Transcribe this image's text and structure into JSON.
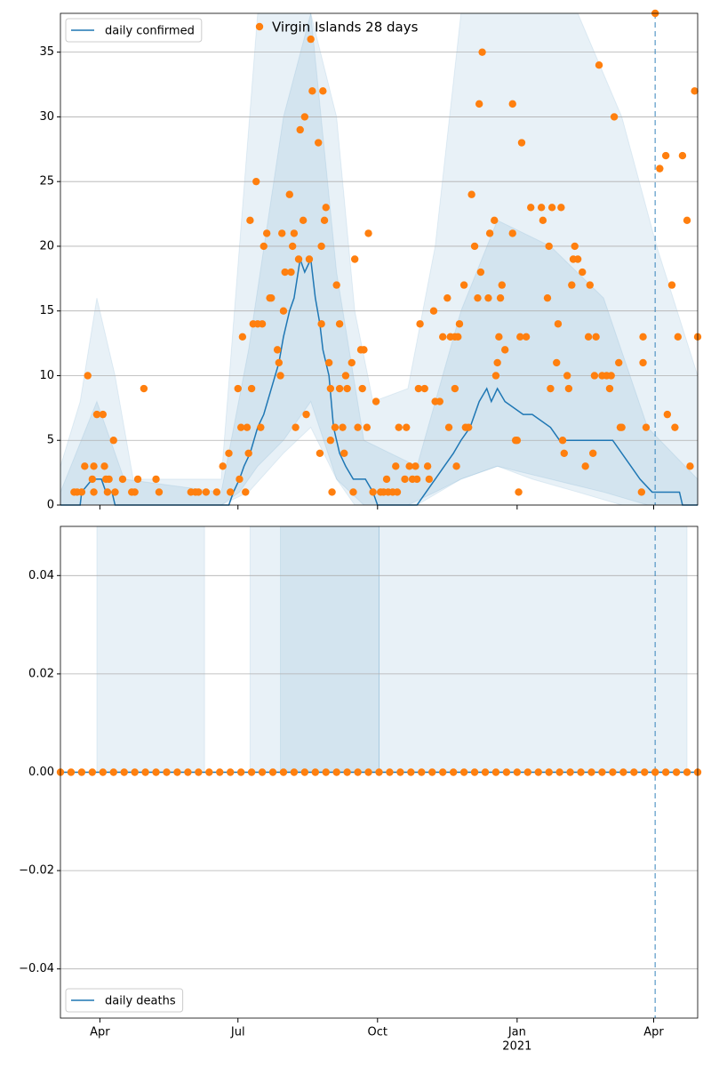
{
  "chart_data": [
    {
      "type": "line",
      "xlim": [
        -26,
        394
      ],
      "ylim": [
        0,
        38
      ],
      "yticks": [
        0,
        5,
        10,
        15,
        20,
        25,
        30,
        35
      ],
      "grid": true,
      "vline": 366,
      "bands": [
        {
          "color": "#1f77b4",
          "x": [
            -26,
            -13,
            -2,
            10,
            22,
            80,
            92,
            104,
            121,
            139,
            156,
            168,
            180,
            203,
            221,
            238,
            262,
            285,
            315,
            344,
            367,
            394
          ],
          "lower": [
            0,
            0,
            0,
            0,
            0,
            0,
            1,
            3,
            5,
            8,
            2,
            0,
            0,
            0,
            1,
            2,
            3,
            2,
            1,
            0,
            0,
            0
          ],
          "upper": [
            3,
            8,
            16,
            10,
            2,
            2,
            20,
            38,
            38,
            38,
            30,
            15,
            8,
            9,
            20,
            38,
            38,
            38,
            38,
            30,
            20,
            10
          ]
        },
        {
          "color": "#1f77b4",
          "x": [
            -26,
            -2,
            16,
            80,
            98,
            121,
            139,
            156,
            174,
            209,
            238,
            262,
            297,
            332,
            361,
            394
          ],
          "lower": [
            0,
            0,
            0,
            0,
            1,
            4,
            6,
            2,
            0,
            0,
            2,
            3,
            2,
            1,
            0,
            0
          ],
          "upper": [
            1,
            8,
            2,
            1,
            12,
            30,
            38,
            18,
            5,
            3,
            15,
            22,
            20,
            16,
            6,
            2
          ]
        }
      ],
      "series": [
        {
          "name": "daily confirmed",
          "color": "#1f77b4",
          "legend": "upper left",
          "x": [
            -26,
            -13,
            -12,
            -5,
            1,
            4,
            8,
            10,
            23,
            85,
            88,
            92,
            95,
            99,
            104,
            108,
            113,
            118,
            121,
            125,
            128,
            132,
            135,
            139,
            142,
            145,
            147,
            151,
            154,
            158,
            162,
            167,
            175,
            180,
            183,
            209,
            215,
            221,
            227,
            233,
            238,
            244,
            250,
            255,
            258,
            262,
            267,
            279,
            285,
            297,
            303,
            315,
            338,
            344,
            350,
            356,
            364,
            382,
            384,
            394
          ],
          "values": [
            0,
            0,
            1,
            2,
            2,
            1,
            1,
            0,
            0,
            0,
            1,
            2,
            3,
            4,
            6,
            7,
            9,
            11,
            13,
            15,
            16,
            19,
            18,
            19,
            16,
            14,
            12,
            10,
            6,
            4,
            3,
            2,
            2,
            1,
            0,
            0,
            1,
            2,
            3,
            4,
            5,
            6,
            8,
            9,
            8,
            9,
            8,
            7,
            7,
            6,
            5,
            5,
            5,
            4,
            3,
            2,
            1,
            1,
            0,
            0
          ]
        },
        {
          "name": "Virgin Islands 28 days",
          "type": "scatter",
          "color": "#ff7f0e",
          "legend": "upper center",
          "x": [
            -17,
            -15,
            -12,
            -10,
            -8,
            -5,
            -4,
            -4,
            -2,
            2,
            3,
            4,
            5,
            6,
            9,
            10,
            15,
            21,
            23,
            25,
            29,
            37,
            39,
            60,
            63,
            65,
            70,
            77,
            81,
            85,
            86,
            91,
            92,
            93,
            94,
            96,
            97,
            98,
            99,
            100,
            101,
            103,
            104,
            106,
            107,
            108,
            110,
            112,
            113,
            117,
            118,
            119,
            120,
            121,
            122,
            125,
            126,
            127,
            128,
            129,
            131,
            132,
            134,
            135,
            136,
            138,
            139,
            140,
            144,
            145,
            146,
            146,
            147,
            148,
            149,
            151,
            152,
            152,
            153,
            155,
            156,
            158,
            158,
            160,
            161,
            162,
            163,
            166,
            167,
            168,
            170,
            172,
            173,
            174,
            176,
            177,
            180,
            182,
            185,
            187,
            189,
            190,
            193,
            195,
            196,
            197,
            201,
            202,
            204,
            206,
            208,
            209,
            210,
            211,
            214,
            216,
            217,
            220,
            221,
            224,
            226,
            229,
            230,
            231,
            234,
            234,
            235,
            236,
            237,
            240,
            241,
            243,
            245,
            247,
            249,
            250,
            251,
            252,
            256,
            257,
            260,
            261,
            262,
            263,
            264,
            265,
            267,
            272,
            272,
            274,
            275,
            276,
            277,
            278,
            281,
            284,
            291,
            292,
            295,
            296,
            297,
            298,
            301,
            302,
            304,
            305,
            306,
            308,
            309,
            311,
            312,
            313,
            315,
            318,
            320,
            322,
            323,
            325,
            326,
            327,
            329,
            331,
            334,
            336,
            337,
            339,
            342,
            343,
            344,
            357,
            358,
            358,
            360,
            366,
            369,
            373,
            374,
            377,
            379,
            381,
            384,
            387,
            389,
            392,
            394
          ],
          "values": [
            1,
            1,
            1,
            3,
            10,
            2,
            3,
            1,
            7,
            7,
            3,
            2,
            1,
            2,
            5,
            1,
            2,
            1,
            1,
            2,
            9,
            2,
            1,
            1,
            1,
            1,
            1,
            1,
            3,
            4,
            1,
            9,
            2,
            6,
            13,
            1,
            6,
            4,
            22,
            9,
            14,
            25,
            14,
            6,
            14,
            20,
            21,
            16,
            16,
            12,
            11,
            10,
            21,
            15,
            18,
            24,
            18,
            20,
            21,
            6,
            19,
            29,
            22,
            30,
            7,
            19,
            36,
            32,
            28,
            4,
            20,
            14,
            32,
            22,
            23,
            11,
            5,
            9,
            1,
            6,
            17,
            14,
            9,
            6,
            4,
            10,
            9,
            11,
            1,
            19,
            6,
            12,
            9,
            12,
            6,
            21,
            1,
            8,
            1,
            1,
            2,
            1,
            1,
            3,
            1,
            6,
            2,
            6,
            3,
            2,
            3,
            2,
            9,
            14,
            9,
            3,
            2,
            15,
            8,
            8,
            13,
            16,
            6,
            13,
            13,
            9,
            3,
            13,
            14,
            17,
            6,
            6,
            24,
            20,
            16,
            31,
            18,
            35,
            16,
            21,
            22,
            10,
            11,
            13,
            16,
            17,
            12,
            21,
            31,
            5,
            5,
            1,
            13,
            28,
            13,
            23,
            23,
            22,
            16,
            20,
            9,
            23,
            11,
            14,
            23,
            5,
            4,
            10,
            9,
            17,
            19,
            20,
            19,
            18,
            3,
            13,
            17,
            4,
            10,
            13,
            34,
            10,
            10,
            9,
            10,
            30,
            11,
            6,
            6,
            1,
            11,
            13,
            6,
            38,
            26,
            27,
            7,
            17,
            6,
            13,
            27,
            22,
            3,
            32,
            13
          ]
        }
      ]
    },
    {
      "type": "line",
      "xlim": [
        -26,
        394
      ],
      "ylim": [
        -0.05,
        0.05
      ],
      "yticks": [
        {
          "value": -0.04,
          "label": "−0.04"
        },
        {
          "value": -0.02,
          "label": "−0.02"
        },
        {
          "value": 0,
          "label": "0.00"
        },
        {
          "value": 0.02,
          "label": "0.02"
        },
        {
          "value": 0.04,
          "label": "0.04"
        }
      ],
      "grid": true,
      "vline": 366,
      "xticks": [
        {
          "value": 0,
          "label": "Apr"
        },
        {
          "value": 91,
          "label": "Jul"
        },
        {
          "value": 183,
          "label": "Oct"
        },
        {
          "value": 275,
          "label": "Jan"
        },
        {
          "value": 365,
          "label": "Apr"
        }
      ],
      "year_label": {
        "value": 275,
        "label": "2021"
      },
      "bands": [
        {
          "color": "#1f77b4",
          "x": [
            -2,
            69
          ],
          "lower": [
            0,
            0
          ],
          "upper": [
            0.05,
            0.05
          ]
        },
        {
          "color": "#1f77b4",
          "x": [
            99,
            184
          ],
          "lower": [
            0,
            0
          ],
          "upper": [
            0.05,
            0.05
          ]
        },
        {
          "color": "#1f77b4",
          "x": [
            119,
            184
          ],
          "lower": [
            0,
            0
          ],
          "upper": [
            0.05,
            0.05
          ]
        },
        {
          "color": "#1f77b4",
          "x": [
            184,
            387
          ],
          "lower": [
            0,
            0
          ],
          "upper": [
            0.05,
            0.05
          ]
        }
      ],
      "series": [
        {
          "name": "daily deaths",
          "color": "#1f77b4",
          "legend": "lower left",
          "x": [
            -26,
            394
          ],
          "values": [
            0,
            0
          ]
        },
        {
          "type": "scatter",
          "color": "#ff7f0e",
          "x": [
            -26,
            -19,
            -12,
            -5,
            2,
            9,
            16,
            23,
            30,
            37,
            44,
            51,
            58,
            65,
            72,
            79,
            86,
            93,
            100,
            107,
            114,
            121,
            128,
            135,
            142,
            149,
            156,
            163,
            170,
            177,
            184,
            191,
            198,
            205,
            212,
            219,
            226,
            233,
            240,
            247,
            254,
            261,
            268,
            275,
            282,
            289,
            296,
            303,
            310,
            317,
            324,
            331,
            338,
            345,
            352,
            359,
            366,
            373,
            380,
            387,
            394
          ],
          "values": [
            0,
            0,
            0,
            0,
            0,
            0,
            0,
            0,
            0,
            0,
            0,
            0,
            0,
            0,
            0,
            0,
            0,
            0,
            0,
            0,
            0,
            0,
            0,
            0,
            0,
            0,
            0,
            0,
            0,
            0,
            0,
            0,
            0,
            0,
            0,
            0,
            0,
            0,
            0,
            0,
            0,
            0,
            0,
            0,
            0,
            0,
            0,
            0,
            0,
            0,
            0,
            0,
            0,
            0,
            0,
            0,
            0,
            0,
            0,
            0,
            0
          ]
        }
      ]
    }
  ]
}
